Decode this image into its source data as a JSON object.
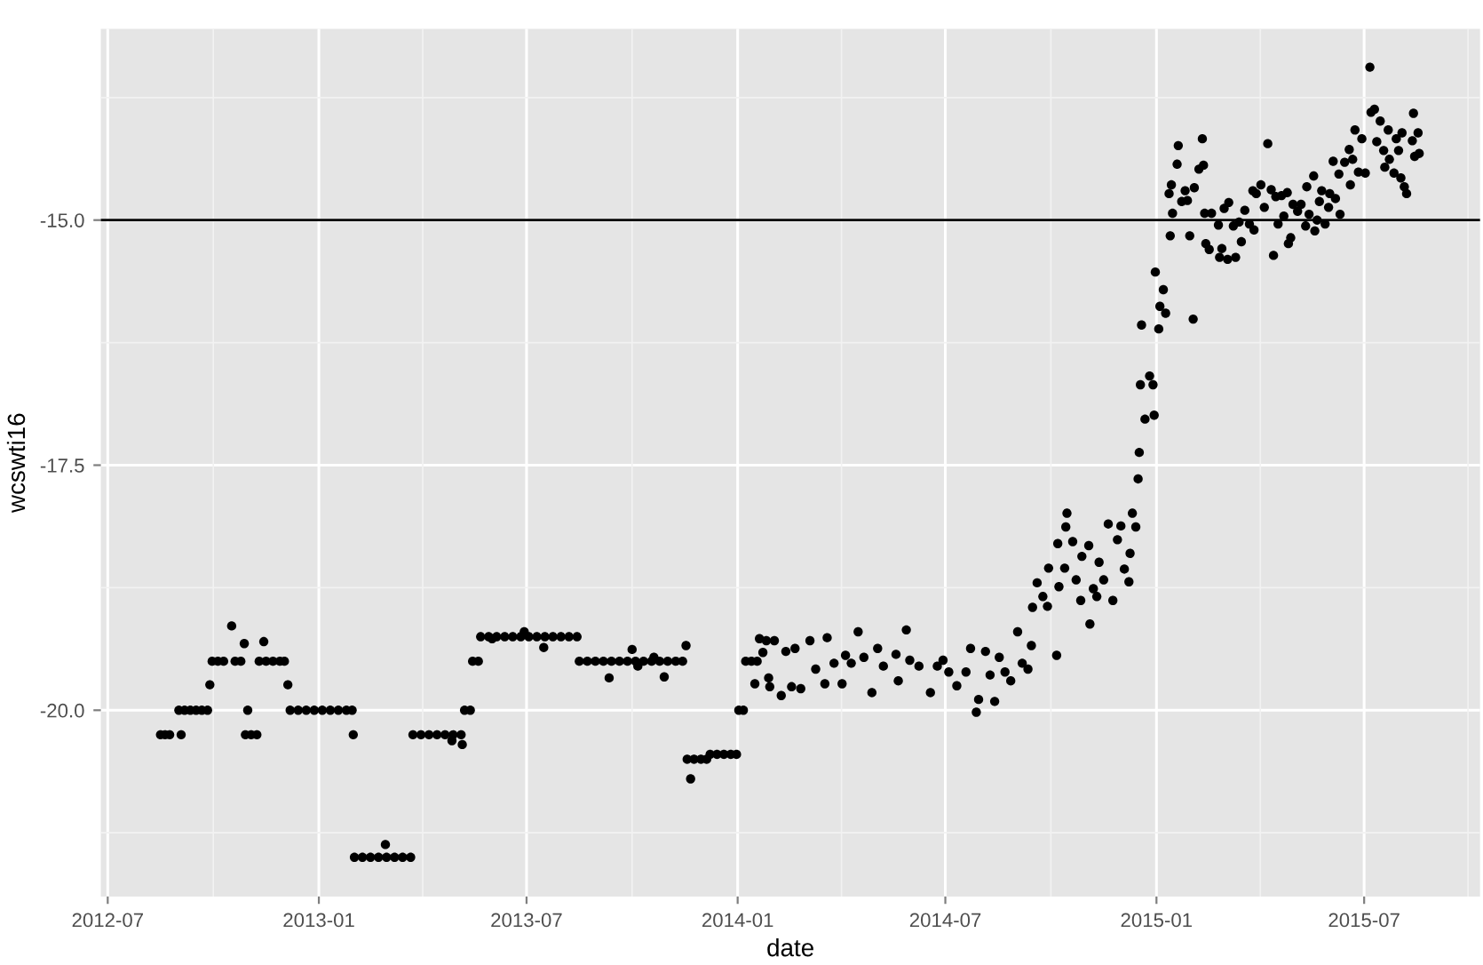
{
  "chart_data": {
    "type": "scatter",
    "xlabel": "date",
    "ylabel": "wcswti16",
    "xlim": [
      "2012-06-25",
      "2015-10-10"
    ],
    "xticks": [
      "2012-07",
      "2013-01",
      "2013-07",
      "2014-01",
      "2014-07",
      "2015-01",
      "2015-07"
    ],
    "ylim": [
      -21.9,
      -13.05
    ],
    "yticks": [
      {
        "value": -20,
        "label": "-20.0"
      },
      {
        "value": -17.5,
        "label": "-17.5"
      },
      {
        "value": -15,
        "label": "-15.0"
      }
    ],
    "grid": true,
    "marker": "circle",
    "legend": false,
    "ref_lines": [
      {
        "axis": "y",
        "value": -15,
        "color": "#000000",
        "line_style": "solid"
      }
    ],
    "series": [
      {
        "color": "#000000",
        "x": [
          "2012-08-16",
          "2012-08-20",
          "2012-08-24",
          "2012-09-03",
          "2012-09-01",
          "2012-09-06",
          "2012-09-11",
          "2012-09-16",
          "2012-09-21",
          "2012-09-26",
          "2012-09-28",
          "2012-09-30",
          "2012-10-05",
          "2012-10-10",
          "2012-10-20",
          "2012-10-25",
          "2012-10-17",
          "2012-10-28",
          "2012-10-31",
          "2012-10-29",
          "2012-11-03",
          "2012-11-08",
          "2012-11-14",
          "2012-11-10",
          "2012-11-16",
          "2012-11-22",
          "2012-11-28",
          "2012-12-02",
          "2012-12-05",
          "2012-12-07",
          "2012-12-14",
          "2012-12-21",
          "2012-12-28",
          "2013-01-04",
          "2013-01-11",
          "2013-01-18",
          "2013-01-25",
          "2013-01-30",
          "2013-01-31",
          "2013-02-01",
          "2013-02-08",
          "2013-02-15",
          "2013-02-22",
          "2013-03-01",
          "2013-03-08",
          "2013-03-15",
          "2013-03-22",
          "2013-02-28",
          "2013-03-24",
          "2013-03-31",
          "2013-04-07",
          "2013-04-14",
          "2013-04-21",
          "2013-04-28",
          "2013-05-05",
          "2013-04-27",
          "2013-05-06",
          "2013-05-08",
          "2013-05-13",
          "2013-05-15",
          "2013-05-20",
          "2013-05-22",
          "2013-05-29",
          "2013-06-05",
          "2013-06-12",
          "2013-06-19",
          "2013-06-26",
          "2013-07-03",
          "2013-07-10",
          "2013-07-17",
          "2013-07-24",
          "2013-07-31",
          "2013-08-07",
          "2013-08-14",
          "2013-06-29",
          "2013-06-01",
          "2013-07-16",
          "2013-08-16",
          "2013-08-23",
          "2013-08-30",
          "2013-09-06",
          "2013-09-13",
          "2013-09-20",
          "2013-09-27",
          "2013-10-04",
          "2013-10-11",
          "2013-10-18",
          "2013-10-25",
          "2013-11-01",
          "2013-11-08",
          "2013-11-14",
          "2013-09-11",
          "2013-10-01",
          "2013-10-06",
          "2013-10-20",
          "2013-10-29",
          "2013-11-17",
          "2013-11-18",
          "2013-11-24",
          "2013-11-30",
          "2013-12-05",
          "2013-11-21",
          "2013-12-08",
          "2013-12-14",
          "2013-12-20",
          "2013-12-26",
          "2013-12-31",
          "2014-01-02",
          "2014-01-06",
          "2014-01-08",
          "2014-01-13",
          "2014-01-18",
          "2014-01-20",
          "2014-01-26",
          "2014-02-02",
          "2014-01-16",
          "2014-01-23",
          "2014-01-28",
          "2014-01-29",
          "2014-02-08",
          "2014-02-12",
          "2014-02-20",
          "2014-02-17",
          "2014-02-25",
          "2014-03-05",
          "2014-03-10",
          "2014-03-18",
          "2014-03-20",
          "2014-03-26",
          "2014-04-02",
          "2014-04-05",
          "2014-04-10",
          "2014-04-16",
          "2014-04-21",
          "2014-04-28",
          "2014-05-03",
          "2014-05-08",
          "2014-05-19",
          "2014-05-21",
          "2014-05-28",
          "2014-05-31",
          "2014-06-08",
          "2014-06-18",
          "2014-06-24",
          "2014-06-29",
          "2014-07-04",
          "2014-07-11",
          "2014-07-19",
          "2014-07-23",
          "2014-07-28",
          "2014-07-30",
          "2014-08-05",
          "2014-08-09",
          "2014-08-13",
          "2014-08-17",
          "2014-08-22",
          "2014-08-27",
          "2014-09-02",
          "2014-09-06",
          "2014-09-11",
          "2014-09-14",
          "2014-09-15",
          "2014-09-19",
          "2014-09-24",
          "2014-09-28",
          "2014-09-29",
          "2014-10-07",
          "2014-10-06",
          "2014-10-08",
          "2014-10-14",
          "2014-10-15",
          "2014-10-13",
          "2014-10-20",
          "2014-10-23",
          "2014-10-27",
          "2014-10-28",
          "2014-11-03",
          "2014-11-04",
          "2014-11-07",
          "2014-11-10",
          "2014-11-12",
          "2014-11-16",
          "2014-11-20",
          "2014-11-24",
          "2014-11-28",
          "2014-12-01",
          "2014-12-04",
          "2014-12-09",
          "2014-12-08",
          "2014-12-11",
          "2014-12-14",
          "2014-12-16",
          "2014-12-17",
          "2014-12-22",
          "2014-12-30",
          "2014-12-18",
          "2014-12-26",
          "2014-12-29",
          "2014-12-19",
          "2015-01-03",
          "2014-12-31",
          "2015-01-07",
          "2015-01-04",
          "2015-01-09",
          "2015-02-02",
          "2015-01-13",
          "2015-01-15",
          "2015-01-12",
          "2015-01-14",
          "2015-01-19",
          "2015-01-20",
          "2015-01-23",
          "2015-01-26",
          "2015-01-28",
          "2015-01-30",
          "2015-02-03",
          "2015-02-07",
          "2015-02-10",
          "2015-02-11",
          "2015-02-12",
          "2015-02-13",
          "2015-02-16",
          "2015-02-18",
          "2015-02-24",
          "2015-02-25",
          "2015-02-27",
          "2015-03-01",
          "2015-03-04",
          "2015-03-05",
          "2015-03-09",
          "2015-03-11",
          "2015-03-14",
          "2015-03-16",
          "2015-03-19",
          "2015-03-23",
          "2015-03-26",
          "2015-03-27",
          "2015-03-29",
          "2015-04-02",
          "2015-04-05",
          "2015-04-08",
          "2015-04-11",
          "2015-04-13",
          "2015-04-15",
          "2015-04-17",
          "2015-04-20",
          "2015-04-22",
          "2015-04-25",
          "2015-04-26",
          "2015-04-28",
          "2015-04-30",
          "2015-05-04",
          "2015-05-07",
          "2015-05-12",
          "2015-05-11",
          "2015-05-14",
          "2015-05-18",
          "2015-05-19",
          "2015-05-21",
          "2015-05-23",
          "2015-05-25",
          "2015-05-28",
          "2015-05-31",
          "2015-06-01",
          "2015-06-04",
          "2015-06-06",
          "2015-06-10",
          "2015-06-09",
          "2015-06-14",
          "2015-06-18",
          "2015-06-19",
          "2015-06-21",
          "2015-06-23",
          "2015-06-26",
          "2015-06-29",
          "2015-07-02",
          "2015-07-06",
          "2015-07-07",
          "2015-07-10",
          "2015-07-12",
          "2015-07-15",
          "2015-07-18",
          "2015-07-22",
          "2015-07-23",
          "2015-07-19",
          "2015-07-27",
          "2015-07-29",
          "2015-07-31",
          "2015-08-03",
          "2015-08-02",
          "2015-08-05",
          "2015-08-07",
          "2015-08-12",
          "2015-08-13",
          "2015-08-14",
          "2015-08-17",
          "2015-08-18"
        ],
        "values": [
          -20.25,
          -20.25,
          -20.25,
          -20.25,
          -20.0,
          -20.0,
          -20.0,
          -20.0,
          -20.0,
          -20.0,
          -19.74,
          -19.5,
          -19.5,
          -19.5,
          -19.5,
          -19.5,
          -19.14,
          -19.32,
          -20.0,
          -20.25,
          -20.25,
          -20.25,
          -19.3,
          -19.5,
          -19.5,
          -19.5,
          -19.5,
          -19.5,
          -19.74,
          -20.0,
          -20.0,
          -20.0,
          -20.0,
          -20.0,
          -20.0,
          -20.0,
          -20.0,
          -20.0,
          -20.25,
          -21.5,
          -21.5,
          -21.5,
          -21.5,
          -21.5,
          -21.5,
          -21.5,
          -21.5,
          -21.37,
          -20.25,
          -20.25,
          -20.25,
          -20.25,
          -20.25,
          -20.25,
          -20.25,
          -20.31,
          -20.35,
          -20.0,
          -20.0,
          -19.5,
          -19.5,
          -19.25,
          -19.25,
          -19.25,
          -19.25,
          -19.25,
          -19.25,
          -19.25,
          -19.25,
          -19.25,
          -19.25,
          -19.25,
          -19.25,
          -19.25,
          -19.2,
          -19.27,
          -19.36,
          -19.5,
          -19.5,
          -19.5,
          -19.5,
          -19.5,
          -19.5,
          -19.5,
          -19.5,
          -19.5,
          -19.5,
          -19.5,
          -19.5,
          -19.5,
          -19.5,
          -19.67,
          -19.38,
          -19.55,
          -19.46,
          -19.66,
          -19.34,
          -20.5,
          -20.5,
          -20.5,
          -20.5,
          -20.7,
          -20.45,
          -20.45,
          -20.45,
          -20.45,
          -20.45,
          -20.0,
          -20.0,
          -19.5,
          -19.5,
          -19.5,
          -19.27,
          -19.29,
          -19.29,
          -19.73,
          -19.41,
          -19.67,
          -19.76,
          -19.85,
          -19.4,
          -19.37,
          -19.76,
          -19.78,
          -19.29,
          -19.58,
          -19.73,
          -19.26,
          -19.52,
          -19.73,
          -19.44,
          -19.52,
          -19.2,
          -19.46,
          -19.82,
          -19.37,
          -19.55,
          -19.43,
          -19.7,
          -19.18,
          -19.49,
          -19.55,
          -19.82,
          -19.55,
          -19.49,
          -19.61,
          -19.75,
          -19.61,
          -19.37,
          -20.02,
          -19.89,
          -19.4,
          -19.64,
          -19.91,
          -19.46,
          -19.61,
          -19.7,
          -19.2,
          -19.52,
          -19.58,
          -19.34,
          -18.95,
          -18.7,
          -18.84,
          -18.94,
          -18.55,
          -18.3,
          -19.44,
          -18.74,
          -18.13,
          -17.99,
          -18.55,
          -18.28,
          -18.67,
          -18.88,
          -18.43,
          -18.32,
          -19.12,
          -18.76,
          -18.84,
          -18.49,
          -18.67,
          -18.1,
          -18.88,
          -18.26,
          -18.12,
          -18.56,
          -18.4,
          -18.69,
          -17.99,
          -18.13,
          -17.64,
          -17.37,
          -17.03,
          -16.99,
          -16.68,
          -16.59,
          -16.68,
          -16.07,
          -16.11,
          -15.53,
          -15.71,
          -15.88,
          -15.95,
          -16.01,
          -15.16,
          -14.93,
          -14.73,
          -14.64,
          -14.43,
          -14.24,
          -14.81,
          -14.7,
          -14.8,
          -15.16,
          -14.67,
          -14.48,
          -14.17,
          -14.44,
          -14.93,
          -15.24,
          -15.3,
          -14.93,
          -15.05,
          -15.38,
          -15.29,
          -14.88,
          -15.4,
          -14.82,
          -15.06,
          -15.38,
          -15.02,
          -15.22,
          -14.9,
          -15.04,
          -14.7,
          -15.1,
          -14.73,
          -14.64,
          -14.87,
          -14.22,
          -14.69,
          -15.36,
          -14.76,
          -15.04,
          -14.75,
          -14.96,
          -14.72,
          -15.24,
          -15.18,
          -14.84,
          -14.91,
          -14.84,
          -14.66,
          -15.06,
          -14.94,
          -14.55,
          -15.11,
          -15.0,
          -14.81,
          -14.7,
          -15.04,
          -14.87,
          -14.73,
          -14.4,
          -14.78,
          -14.94,
          -14.53,
          -14.41,
          -14.28,
          -14.64,
          -14.38,
          -14.08,
          -14.51,
          -14.17,
          -14.52,
          -13.44,
          -13.9,
          -13.87,
          -14.2,
          -13.99,
          -14.29,
          -14.08,
          -14.38,
          -14.46,
          -14.52,
          -14.17,
          -14.29,
          -14.11,
          -14.57,
          -14.66,
          -14.73,
          -14.19,
          -13.91,
          -14.35,
          -14.11,
          -14.32
        ]
      }
    ]
  }
}
